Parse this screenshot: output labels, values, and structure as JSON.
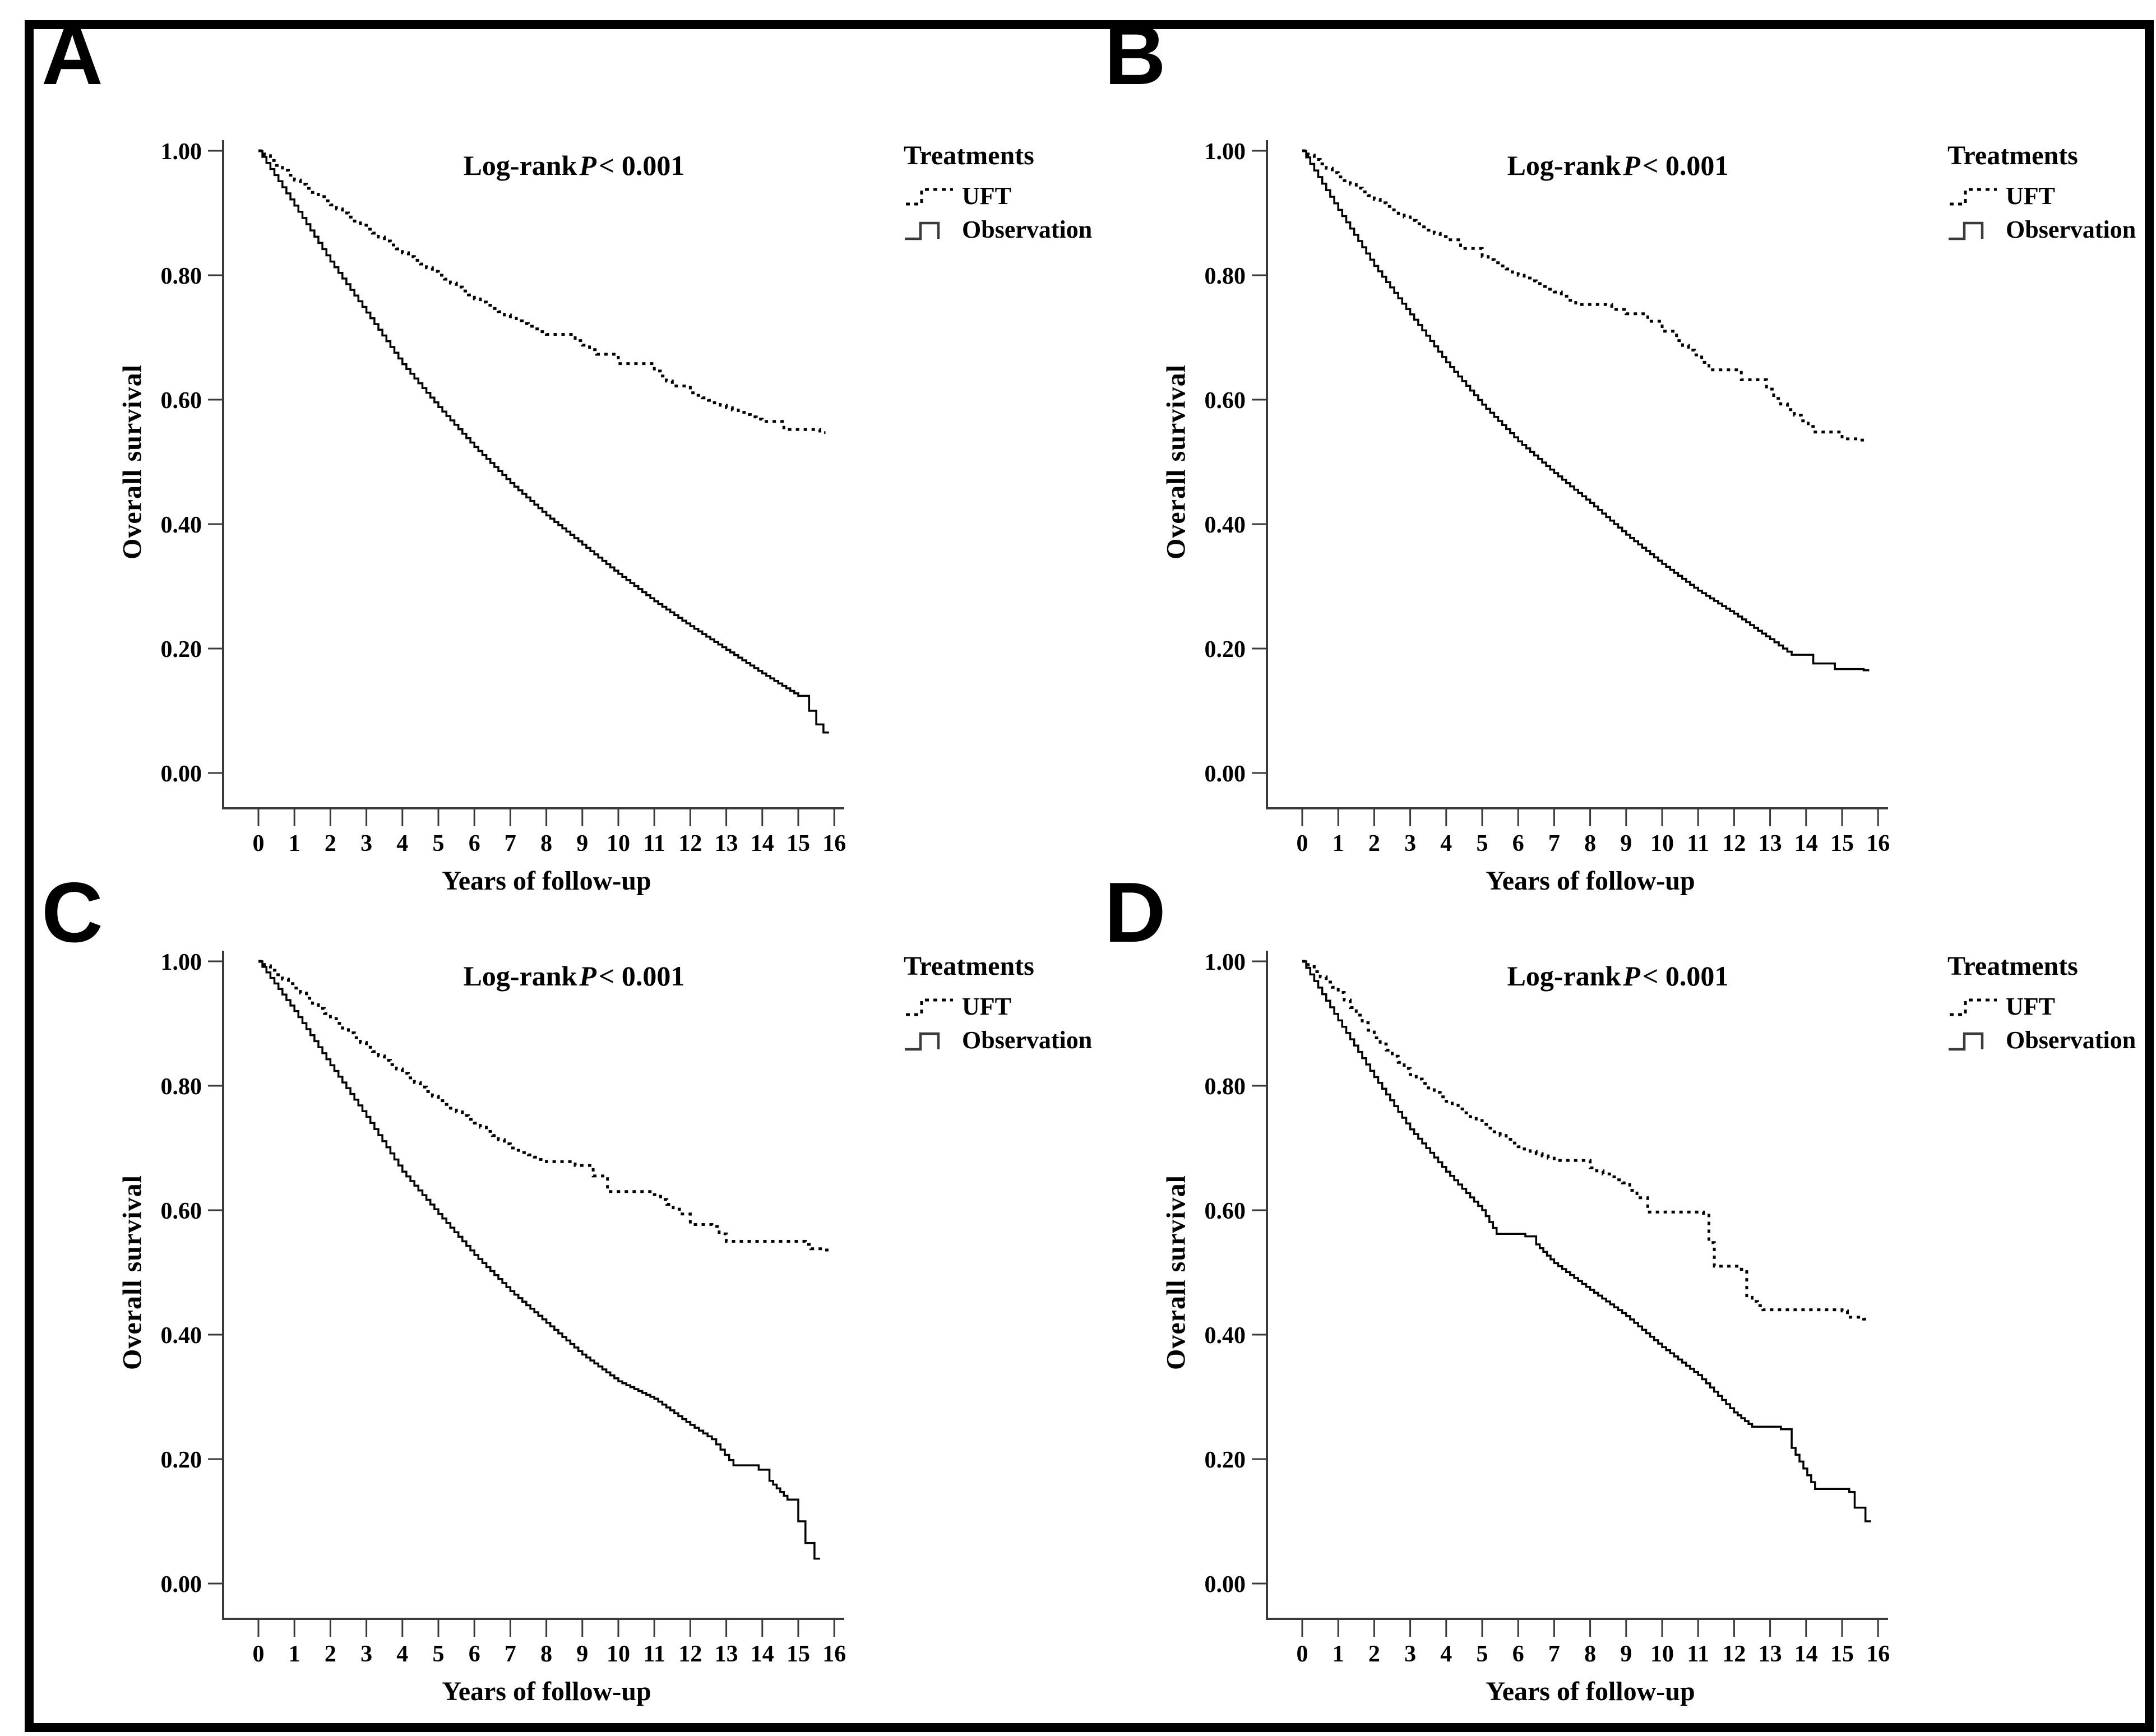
{
  "figure": {
    "annotation": "Log-rank P < 0.001",
    "annotation_prefix": "Log-rank",
    "annotation_italic": "P",
    "annotation_suffix": "< 0.001",
    "ylabel": "Overall survival",
    "xlabel": "Years of follow-up",
    "legend_title": "Treatments",
    "legend_items": [
      {
        "label": "UFT",
        "line_style": "dotted"
      },
      {
        "label": "Observation",
        "line_style": "solid"
      }
    ],
    "colors": {
      "ink": "#000000",
      "axis": "#3a3a3a",
      "background": "#ffffff"
    }
  },
  "chart_data": [
    {
      "label": "A",
      "type": "line",
      "subtype": "kaplan-meier-step",
      "title": "Log-rank P < 0.001",
      "xlabel": "Years of follow-up",
      "ylabel": "Overall survival",
      "xlim": [
        0,
        16
      ],
      "ylim": [
        0.0,
        1.0
      ],
      "xticks": [
        0,
        1,
        2,
        3,
        4,
        5,
        6,
        7,
        8,
        9,
        10,
        11,
        12,
        13,
        14,
        15,
        16
      ],
      "ytick_values": [
        0.0,
        0.2,
        0.4,
        0.6,
        0.8,
        1.0
      ],
      "ytick_labels": [
        "0.00",
        "0.20",
        "0.40",
        "0.60",
        "0.80",
        "1.00"
      ],
      "legend_position": "right-top",
      "grid": false,
      "series": [
        {
          "name": "UFT",
          "line": "dotted",
          "points": [
            [
              0,
              1.0
            ],
            [
              1,
              0.953
            ],
            [
              2,
              0.913
            ],
            [
              3,
              0.874
            ],
            [
              4,
              0.836
            ],
            [
              5,
              0.8
            ],
            [
              6,
              0.762
            ],
            [
              7,
              0.731
            ],
            [
              8,
              0.705
            ],
            [
              8.8,
              0.695
            ],
            [
              9.4,
              0.673
            ],
            [
              10,
              0.658
            ],
            [
              11,
              0.646
            ],
            [
              11.5,
              0.622
            ],
            [
              12,
              0.611
            ],
            [
              13,
              0.587
            ],
            [
              14,
              0.565
            ],
            [
              14.6,
              0.552
            ],
            [
              15.6,
              0.547
            ]
          ]
        },
        {
          "name": "Observation",
          "line": "solid",
          "points": [
            [
              0,
              1.0
            ],
            [
              1,
              0.912
            ],
            [
              2,
              0.822
            ],
            [
              3,
              0.74
            ],
            [
              4,
              0.657
            ],
            [
              5,
              0.588
            ],
            [
              6,
              0.524
            ],
            [
              7,
              0.466
            ],
            [
              8,
              0.414
            ],
            [
              9,
              0.367
            ],
            [
              10,
              0.32
            ],
            [
              11,
              0.276
            ],
            [
              12,
              0.236
            ],
            [
              13,
              0.198
            ],
            [
              14,
              0.16
            ],
            [
              15,
              0.124
            ],
            [
              15.3,
              0.1
            ],
            [
              15.5,
              0.078
            ],
            [
              15.7,
              0.065
            ]
          ]
        }
      ]
    },
    {
      "label": "B",
      "type": "line",
      "subtype": "kaplan-meier-step",
      "title": "Log-rank P < 0.001",
      "xlabel": "Years of follow-up",
      "ylabel": "Overall survival",
      "xlim": [
        0,
        16
      ],
      "ylim": [
        0.0,
        1.0
      ],
      "xticks": [
        0,
        1,
        2,
        3,
        4,
        5,
        6,
        7,
        8,
        9,
        10,
        11,
        12,
        13,
        14,
        15,
        16
      ],
      "ytick_values": [
        0.0,
        0.2,
        0.4,
        0.6,
        0.8,
        1.0
      ],
      "ytick_labels": [
        "0.00",
        "0.20",
        "0.40",
        "0.60",
        "0.80",
        "1.00"
      ],
      "legend_position": "right-top",
      "grid": false,
      "series": [
        {
          "name": "UFT",
          "line": "dotted",
          "points": [
            [
              0,
              1.0
            ],
            [
              1,
              0.958
            ],
            [
              2,
              0.922
            ],
            [
              3,
              0.888
            ],
            [
              4,
              0.857
            ],
            [
              4.4,
              0.843
            ],
            [
              5,
              0.83
            ],
            [
              6,
              0.8
            ],
            [
              7,
              0.773
            ],
            [
              7.6,
              0.753
            ],
            [
              8.6,
              0.745
            ],
            [
              9,
              0.738
            ],
            [
              9.6,
              0.726
            ],
            [
              10,
              0.71
            ],
            [
              10.4,
              0.695
            ],
            [
              10.9,
              0.672
            ],
            [
              11.3,
              0.648
            ],
            [
              12.2,
              0.632
            ],
            [
              12.9,
              0.617
            ],
            [
              13.1,
              0.602
            ],
            [
              14.25,
              0.548
            ],
            [
              15.0,
              0.537
            ],
            [
              15.5,
              0.535
            ]
          ]
        },
        {
          "name": "Observation",
          "line": "solid",
          "points": [
            [
              0,
              1.0
            ],
            [
              1,
              0.905
            ],
            [
              2,
              0.815
            ],
            [
              3,
              0.737
            ],
            [
              4,
              0.66
            ],
            [
              5,
              0.592
            ],
            [
              6,
              0.533
            ],
            [
              7,
              0.482
            ],
            [
              8,
              0.434
            ],
            [
              9,
              0.383
            ],
            [
              10,
              0.336
            ],
            [
              11,
              0.293
            ],
            [
              12,
              0.256
            ],
            [
              13,
              0.215
            ],
            [
              13.6,
              0.19
            ],
            [
              14.2,
              0.176
            ],
            [
              14.8,
              0.167
            ],
            [
              15.6,
              0.165
            ]
          ]
        }
      ]
    },
    {
      "label": "C",
      "type": "line",
      "subtype": "kaplan-meier-step",
      "title": "Log-rank P < 0.001",
      "xlabel": "Years of follow-up",
      "ylabel": "Overall survival",
      "xlim": [
        0,
        16
      ],
      "ylim": [
        0.0,
        1.0
      ],
      "xticks": [
        0,
        1,
        2,
        3,
        4,
        5,
        6,
        7,
        8,
        9,
        10,
        11,
        12,
        13,
        14,
        15,
        16
      ],
      "ytick_values": [
        0.0,
        0.2,
        0.4,
        0.6,
        0.8,
        1.0
      ],
      "ytick_labels": [
        "0.00",
        "0.20",
        "0.40",
        "0.60",
        "0.80",
        "1.00"
      ],
      "legend_position": "right-top",
      "grid": false,
      "series": [
        {
          "name": "UFT",
          "line": "dotted",
          "points": [
            [
              0,
              1.0
            ],
            [
              1,
              0.957
            ],
            [
              2,
              0.908
            ],
            [
              3,
              0.862
            ],
            [
              4,
              0.82
            ],
            [
              5,
              0.776
            ],
            [
              6,
              0.74
            ],
            [
              7,
              0.7
            ],
            [
              8,
              0.678
            ],
            [
              8.8,
              0.672
            ],
            [
              9.3,
              0.655
            ],
            [
              9.7,
              0.63
            ],
            [
              11.0,
              0.625
            ],
            [
              11.7,
              0.594
            ],
            [
              12.0,
              0.577
            ],
            [
              12.6,
              0.574
            ],
            [
              13.0,
              0.55
            ],
            [
              15.2,
              0.545
            ],
            [
              15.35,
              0.538
            ],
            [
              15.7,
              0.536
            ]
          ]
        },
        {
          "name": "Observation",
          "line": "solid",
          "points": [
            [
              0,
              1.0
            ],
            [
              1,
              0.92
            ],
            [
              2,
              0.833
            ],
            [
              3,
              0.75
            ],
            [
              4,
              0.662
            ],
            [
              5,
              0.594
            ],
            [
              6,
              0.528
            ],
            [
              7,
              0.47
            ],
            [
              8,
              0.419
            ],
            [
              9,
              0.368
            ],
            [
              10,
              0.325
            ],
            [
              11,
              0.297
            ],
            [
              12,
              0.255
            ],
            [
              12.6,
              0.232
            ],
            [
              13.2,
              0.19
            ],
            [
              13.9,
              0.183
            ],
            [
              14.2,
              0.165
            ],
            [
              14.7,
              0.135
            ],
            [
              15.0,
              0.1
            ],
            [
              15.2,
              0.065
            ],
            [
              15.45,
              0.04
            ]
          ]
        }
      ]
    },
    {
      "label": "D",
      "type": "line",
      "subtype": "kaplan-meier-step",
      "title": "Log-rank P < 0.001",
      "xlabel": "Years of follow-up",
      "ylabel": "Overall survival",
      "xlim": [
        0,
        16
      ],
      "ylim": [
        0.0,
        1.0
      ],
      "xticks": [
        0,
        1,
        2,
        3,
        4,
        5,
        6,
        7,
        8,
        9,
        10,
        11,
        12,
        13,
        14,
        15,
        16
      ],
      "ytick_values": [
        0.0,
        0.2,
        0.4,
        0.6,
        0.8,
        1.0
      ],
      "ytick_labels": [
        "0.00",
        "0.20",
        "0.40",
        "0.60",
        "0.80",
        "1.00"
      ],
      "legend_position": "right-top",
      "grid": false,
      "series": [
        {
          "name": "UFT",
          "line": "dotted",
          "points": [
            [
              0,
              1.0
            ],
            [
              1,
              0.95
            ],
            [
              2,
              0.877
            ],
            [
              3,
              0.818
            ],
            [
              4,
              0.775
            ],
            [
              5,
              0.738
            ],
            [
              6,
              0.702
            ],
            [
              7,
              0.68
            ],
            [
              8,
              0.668
            ],
            [
              8.9,
              0.644
            ],
            [
              9.3,
              0.62
            ],
            [
              9.6,
              0.597
            ],
            [
              11.15,
              0.595
            ],
            [
              11.3,
              0.548
            ],
            [
              11.45,
              0.51
            ],
            [
              12.2,
              0.505
            ],
            [
              12.35,
              0.46
            ],
            [
              12.8,
              0.44
            ],
            [
              15.0,
              0.438
            ],
            [
              15.15,
              0.428
            ],
            [
              15.6,
              0.425
            ]
          ]
        },
        {
          "name": "Observation",
          "line": "solid",
          "points": [
            [
              0,
              1.0
            ],
            [
              1,
              0.905
            ],
            [
              2,
              0.814
            ],
            [
              3,
              0.73
            ],
            [
              4,
              0.662
            ],
            [
              5,
              0.6
            ],
            [
              5.4,
              0.562
            ],
            [
              6.2,
              0.558
            ],
            [
              6.5,
              0.545
            ],
            [
              7,
              0.515
            ],
            [
              8,
              0.472
            ],
            [
              9,
              0.43
            ],
            [
              10,
              0.38
            ],
            [
              11,
              0.335
            ],
            [
              12,
              0.275
            ],
            [
              12.5,
              0.252
            ],
            [
              13.3,
              0.248
            ],
            [
              13.6,
              0.218
            ],
            [
              14.25,
              0.152
            ],
            [
              15.2,
              0.147
            ],
            [
              15.35,
              0.122
            ],
            [
              15.65,
              0.1
            ]
          ]
        }
      ]
    }
  ]
}
